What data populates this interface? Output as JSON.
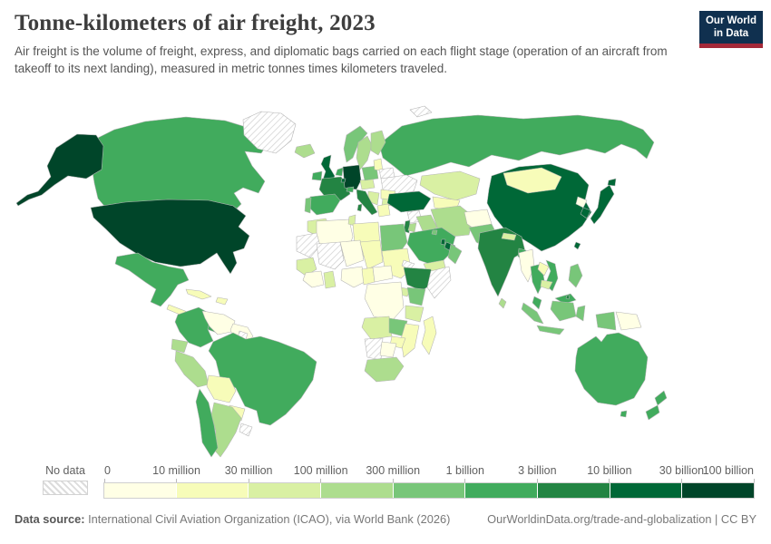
{
  "header": {
    "title": "Tonne-kilometers of air freight, 2023",
    "subtitle": "Air freight is the volume of freight, express, and diplomatic bags carried on each flight stage (operation of an aircraft from takeoff to its next landing), measured in metric tonnes times kilometers traveled.",
    "logo": {
      "line1": "Our World",
      "line2": "in Data",
      "bg_color": "#10304f",
      "accent_color": "#a52939"
    }
  },
  "legend": {
    "no_data_label": "No data",
    "tick_labels": [
      "0",
      "10 million",
      "30 million",
      "100 million",
      "300 million",
      "1 billion",
      "3 billion",
      "10 billion",
      "30 billion",
      "100 billion"
    ]
  },
  "footer": {
    "source_label": "Data source:",
    "source_text": " International Civil Aviation Organization (ICAO), via World Bank (2026)",
    "link_text": "OurWorldinData.org/trade-and-globalization | CC BY"
  },
  "chart_data": {
    "type": "choropleth",
    "title": "Tonne-kilometers of air freight, 2023",
    "year": 2023,
    "unit": "metric tonne-kilometers of air freight",
    "legend_position": "bottom",
    "no_data_style": "gray diagonal hatch",
    "bins": [
      {
        "range": "0–10 million",
        "color": "#ffffe5"
      },
      {
        "range": "10–30 million",
        "color": "#f7fcb9"
      },
      {
        "range": "30–100 million",
        "color": "#d9f0a3"
      },
      {
        "range": "100–300 million",
        "color": "#addd8e"
      },
      {
        "range": "300 million–1 billion",
        "color": "#78c679"
      },
      {
        "range": "1–3 billion",
        "color": "#41ab5d"
      },
      {
        "range": "3–10 billion",
        "color": "#238443"
      },
      {
        "range": "10–30 billion",
        "color": "#006837"
      },
      {
        "range": "30–100 billion",
        "color": "#004529"
      }
    ],
    "countries": [
      {
        "name": "Russia",
        "bin": 5
      },
      {
        "name": "Canada",
        "bin": 5
      },
      {
        "name": "United States",
        "bin": 8
      },
      {
        "name": "Greenland",
        "bin": -1
      },
      {
        "name": "Mexico",
        "bin": 5
      },
      {
        "name": "Guatemala",
        "bin": 1
      },
      {
        "name": "Panama",
        "bin": 5
      },
      {
        "name": "Cuba",
        "bin": 1
      },
      {
        "name": "Dominican Republic",
        "bin": 1
      },
      {
        "name": "Colombia",
        "bin": 5
      },
      {
        "name": "Venezuela",
        "bin": 0
      },
      {
        "name": "Guyana",
        "bin": 0
      },
      {
        "name": "Suriname",
        "bin": -1
      },
      {
        "name": "Brazil",
        "bin": 5
      },
      {
        "name": "Ecuador",
        "bin": 3
      },
      {
        "name": "Peru",
        "bin": 3
      },
      {
        "name": "Bolivia",
        "bin": 1
      },
      {
        "name": "Paraguay",
        "bin": 1
      },
      {
        "name": "Argentina",
        "bin": 3
      },
      {
        "name": "Chile",
        "bin": 5
      },
      {
        "name": "Uruguay",
        "bin": -1
      },
      {
        "name": "Svalbard",
        "bin": -1
      },
      {
        "name": "Iceland",
        "bin": 3
      },
      {
        "name": "Norway",
        "bin": 4
      },
      {
        "name": "Sweden",
        "bin": 3
      },
      {
        "name": "Finland",
        "bin": 3
      },
      {
        "name": "Denmark",
        "bin": 5
      },
      {
        "name": "Ireland",
        "bin": 5
      },
      {
        "name": "United Kingdom",
        "bin": 7
      },
      {
        "name": "France",
        "bin": 6
      },
      {
        "name": "Germany",
        "bin": 8
      },
      {
        "name": "Netherlands",
        "bin": 5
      },
      {
        "name": "Luxembourg",
        "bin": 7
      },
      {
        "name": "Switzerland",
        "bin": 5
      },
      {
        "name": "Czechia",
        "bin": 2
      },
      {
        "name": "Poland",
        "bin": 4
      },
      {
        "name": "Lithuania",
        "bin": 1
      },
      {
        "name": "Belarus",
        "bin": -1
      },
      {
        "name": "Ukraine",
        "bin": -1
      },
      {
        "name": "Romania",
        "bin": 1
      },
      {
        "name": "Serbia",
        "bin": 2
      },
      {
        "name": "Bulgaria",
        "bin": 2
      },
      {
        "name": "Greece",
        "bin": 1
      },
      {
        "name": "Italy",
        "bin": 6
      },
      {
        "name": "Spain",
        "bin": 5
      },
      {
        "name": "Portugal",
        "bin": 4
      },
      {
        "name": "Kazakhstan",
        "bin": 2
      },
      {
        "name": "Uzbekistan",
        "bin": 1
      },
      {
        "name": "Azerbaijan",
        "bin": 3
      },
      {
        "name": "Turkey",
        "bin": 7
      },
      {
        "name": "Syria",
        "bin": -1
      },
      {
        "name": "Iraq",
        "bin": 3
      },
      {
        "name": "Israel",
        "bin": 6
      },
      {
        "name": "Jordan",
        "bin": 3
      },
      {
        "name": "Iran",
        "bin": 3
      },
      {
        "name": "Saudi Arabia",
        "bin": 5
      },
      {
        "name": "Kuwait",
        "bin": 4
      },
      {
        "name": "Qatar",
        "bin": 7
      },
      {
        "name": "United Arab Emirates",
        "bin": 7
      },
      {
        "name": "Oman",
        "bin": 4
      },
      {
        "name": "Yemen",
        "bin": 2
      },
      {
        "name": "Afghanistan",
        "bin": 0
      },
      {
        "name": "Pakistan",
        "bin": 4
      },
      {
        "name": "China",
        "bin": 7
      },
      {
        "name": "Mongolia",
        "bin": 1
      },
      {
        "name": "India",
        "bin": 6
      },
      {
        "name": "Nepal",
        "bin": 2
      },
      {
        "name": "Bangladesh",
        "bin": 5
      },
      {
        "name": "Sri Lanka",
        "bin": 3
      },
      {
        "name": "North Korea",
        "bin": 0
      },
      {
        "name": "South Korea",
        "bin": 7
      },
      {
        "name": "Japan",
        "bin": 7
      },
      {
        "name": "Taiwan",
        "bin": 7
      },
      {
        "name": "Myanmar",
        "bin": 0
      },
      {
        "name": "Thailand",
        "bin": 5
      },
      {
        "name": "Laos",
        "bin": 1
      },
      {
        "name": "Vietnam",
        "bin": 5
      },
      {
        "name": "Cambodia",
        "bin": 2
      },
      {
        "name": "Malaysia",
        "bin": 5
      },
      {
        "name": "Brunei",
        "bin": 6
      },
      {
        "name": "Indonesia",
        "bin": 4
      },
      {
        "name": "Papua New Guinea",
        "bin": 0
      },
      {
        "name": "Philippines",
        "bin": 4
      },
      {
        "name": "Australia",
        "bin": 5
      },
      {
        "name": "New Zealand",
        "bin": 5
      },
      {
        "name": "Morocco",
        "bin": 2
      },
      {
        "name": "Algeria",
        "bin": 0
      },
      {
        "name": "Tunisia",
        "bin": 2
      },
      {
        "name": "Libya",
        "bin": 1
      },
      {
        "name": "Egypt",
        "bin": 4
      },
      {
        "name": "Mauritania",
        "bin": -1
      },
      {
        "name": "Mali",
        "bin": -1
      },
      {
        "name": "Niger",
        "bin": 0
      },
      {
        "name": "Chad",
        "bin": 1
      },
      {
        "name": "Sudan",
        "bin": 1
      },
      {
        "name": "Eritrea",
        "bin": -1
      },
      {
        "name": "Senegal",
        "bin": 2
      },
      {
        "name": "Guinea",
        "bin": 0
      },
      {
        "name": "Ghana",
        "bin": 2
      },
      {
        "name": "Nigeria",
        "bin": 0
      },
      {
        "name": "Cameroon",
        "bin": 1
      },
      {
        "name": "Central African Republic",
        "bin": 0
      },
      {
        "name": "Ethiopia",
        "bin": 6
      },
      {
        "name": "Somalia",
        "bin": -1
      },
      {
        "name": "Uganda",
        "bin": 2
      },
      {
        "name": "Kenya",
        "bin": 4
      },
      {
        "name": "Democratic Republic of Congo",
        "bin": 0
      },
      {
        "name": "Tanzania",
        "bin": 2
      },
      {
        "name": "Angola",
        "bin": 2
      },
      {
        "name": "Zambia",
        "bin": 4
      },
      {
        "name": "Mozambique",
        "bin": 1
      },
      {
        "name": "Zimbabwe",
        "bin": 1
      },
      {
        "name": "Namibia",
        "bin": -1
      },
      {
        "name": "Botswana",
        "bin": 0
      },
      {
        "name": "South Africa",
        "bin": 3
      },
      {
        "name": "Madagascar",
        "bin": 1
      }
    ]
  }
}
